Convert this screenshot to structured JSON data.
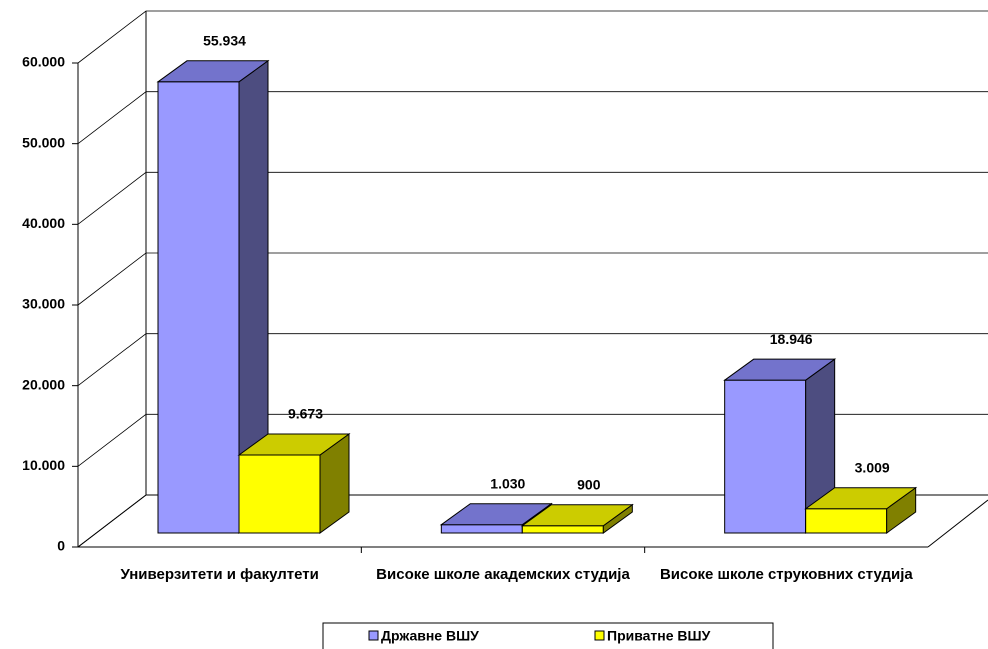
{
  "chart_data": {
    "type": "bar3d",
    "categories": [
      "Универзитети и факултети",
      "Високе школе академских студија",
      "Високе школе струковних студија"
    ],
    "series": [
      {
        "name": "Државне ВШУ",
        "color": "#9999ff",
        "side_color": "#4d4d80",
        "top_color": "#7373cc",
        "values": [
          55934,
          1030,
          18946
        ],
        "value_labels": [
          "55.934",
          "1.030",
          "18.946"
        ]
      },
      {
        "name": "Приватне ВШУ",
        "color": "#ffff00",
        "side_color": "#808000",
        "top_color": "#cccc00",
        "values": [
          9673,
          900,
          3009
        ],
        "value_labels": [
          "9.673",
          "900",
          "3.009"
        ]
      }
    ],
    "ylim": [
      0,
      60000
    ],
    "yticks": [
      0,
      {
        "value": 10000,
        "label": "10.000"
      },
      {
        "value": 20000,
        "label": "20.000"
      },
      {
        "value": 30000,
        "label": "30.000"
      },
      {
        "value": 40000,
        "label": "40.000"
      },
      {
        "value": 50000,
        "label": "50.000"
      },
      {
        "value": 60000,
        "label": "60.000"
      }
    ],
    "grid": true,
    "legend": "bottom"
  }
}
